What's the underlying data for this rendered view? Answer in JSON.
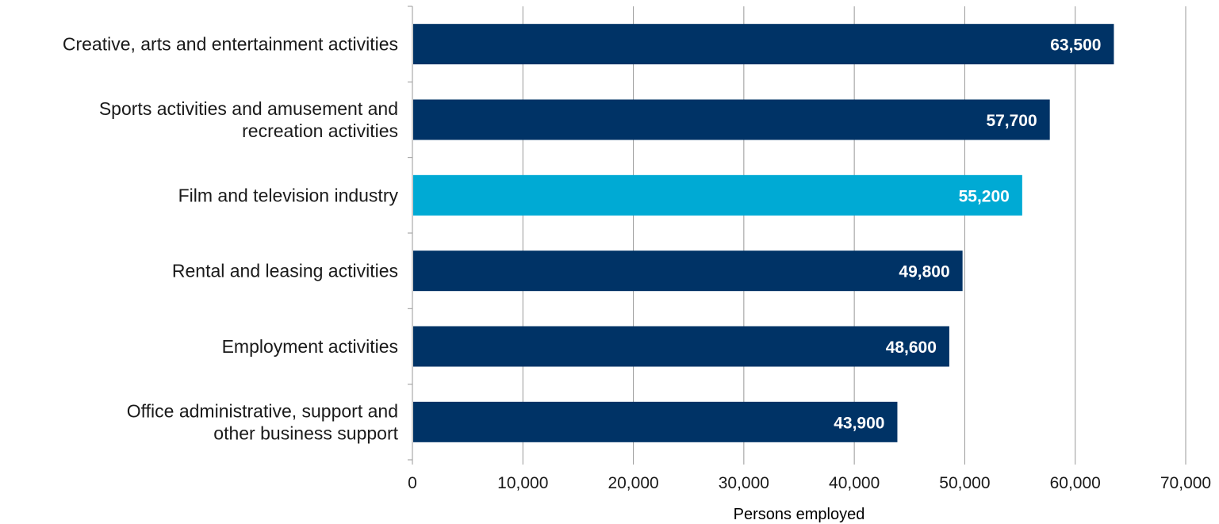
{
  "chart_data": {
    "type": "bar",
    "orientation": "horizontal",
    "categories": [
      [
        "Creative, arts and entertainment activities"
      ],
      [
        "Sports activities and amusement and",
        "recreation activities"
      ],
      [
        "Film and television industry"
      ],
      [
        "Rental and leasing activities"
      ],
      [
        "Employment activities"
      ],
      [
        "Office administrative, support and",
        "other business support"
      ]
    ],
    "values": [
      63500,
      57700,
      55200,
      49800,
      48600,
      43900
    ],
    "value_labels": [
      "63,500",
      "57,700",
      "55,200",
      "49,800",
      "48,600",
      "43,900"
    ],
    "highlight_index": 2,
    "xlim": [
      0,
      70000
    ],
    "xticks": [
      0,
      10000,
      20000,
      30000,
      40000,
      50000,
      60000,
      70000
    ],
    "xtick_labels": [
      "0",
      "10,000",
      "20,000",
      "30,000",
      "40,000",
      "50,000",
      "60,000",
      "70,000"
    ],
    "xlabel": "Persons employed",
    "title": "",
    "grid": "vertical",
    "colors": {
      "bar": "#003366",
      "highlight": "#00aad4",
      "grid": "#999999"
    }
  }
}
